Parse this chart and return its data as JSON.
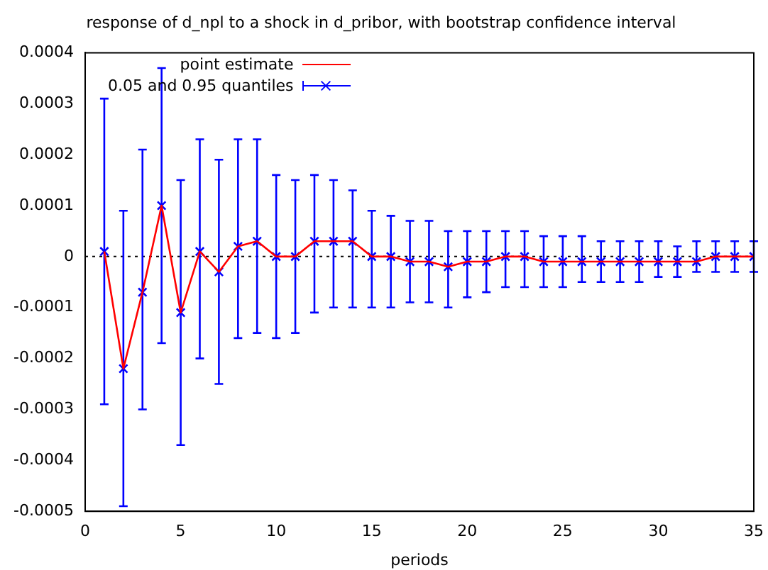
{
  "chart_data": {
    "type": "line",
    "title": "response of d_npl to a shock in d_pribor, with bootstrap confidence interval",
    "xlabel": "periods",
    "x": [
      1,
      2,
      3,
      4,
      5,
      6,
      7,
      8,
      9,
      10,
      11,
      12,
      13,
      14,
      15,
      16,
      17,
      18,
      19,
      20,
      21,
      22,
      23,
      24,
      25,
      26,
      27,
      28,
      29,
      30,
      31,
      32,
      33,
      34,
      35
    ],
    "xlim": [
      0,
      35
    ],
    "xticks": [
      0,
      5,
      10,
      15,
      20,
      25,
      30,
      35
    ],
    "ylim": [
      -0.0005,
      0.0004
    ],
    "yticks": [
      -0.0005,
      -0.0004,
      -0.0003,
      -0.0002,
      -0.0001,
      0,
      0.0001,
      0.0002,
      0.0003,
      0.0004
    ],
    "legend": "top left",
    "grid": false,
    "ref_lines": [
      {
        "axis": "y",
        "value": 0,
        "color": "#000000",
        "line_style": "dotted"
      }
    ],
    "series": [
      {
        "name": "point estimate",
        "type": "line",
        "color": "#ff0000",
        "marker": "none",
        "values": [
          1e-05,
          -0.00022,
          -7e-05,
          0.0001,
          -0.00011,
          1e-05,
          -3e-05,
          2e-05,
          3e-05,
          0,
          0,
          3e-05,
          3e-05,
          3e-05,
          0,
          0,
          -1e-05,
          -1e-05,
          -2e-05,
          -1e-05,
          -1e-05,
          0,
          0,
          -1e-05,
          -1e-05,
          -1e-05,
          -1e-05,
          -1e-05,
          -1e-05,
          -1e-05,
          -1e-05,
          -1e-05,
          0,
          0,
          0
        ]
      },
      {
        "name": "0.05 and 0.95 quantiles",
        "type": "scatter",
        "color": "#0000ff",
        "marker": "cross",
        "values": [
          1e-05,
          -0.00022,
          -7e-05,
          0.0001,
          -0.00011,
          1e-05,
          -3e-05,
          2e-05,
          3e-05,
          0,
          0,
          3e-05,
          3e-05,
          3e-05,
          0,
          0,
          -1e-05,
          -1e-05,
          -2e-05,
          -1e-05,
          -1e-05,
          0,
          0,
          -1e-05,
          -1e-05,
          -1e-05,
          -1e-05,
          -1e-05,
          -1e-05,
          -1e-05,
          -1e-05,
          -1e-05,
          0,
          0,
          0
        ],
        "errors": [
          [
            -0.00029,
            0.00031
          ],
          [
            -0.00049,
            9e-05
          ],
          [
            -0.0003,
            0.00021
          ],
          [
            -0.00017,
            0.00037
          ],
          [
            -0.00037,
            0.00015
          ],
          [
            -0.0002,
            0.00023
          ],
          [
            -0.00025,
            0.00019
          ],
          [
            -0.00016,
            0.00023
          ],
          [
            -0.00015,
            0.00023
          ],
          [
            -0.00016,
            0.00016
          ],
          [
            -0.00015,
            0.00015
          ],
          [
            -0.00011,
            0.00016
          ],
          [
            -0.0001,
            0.00015
          ],
          [
            -0.0001,
            0.00013
          ],
          [
            -0.0001,
            9e-05
          ],
          [
            -0.0001,
            8e-05
          ],
          [
            -9e-05,
            7e-05
          ],
          [
            -9e-05,
            7e-05
          ],
          [
            -0.0001,
            5e-05
          ],
          [
            -8e-05,
            5e-05
          ],
          [
            -7e-05,
            5e-05
          ],
          [
            -6e-05,
            5e-05
          ],
          [
            -6e-05,
            5e-05
          ],
          [
            -6e-05,
            4e-05
          ],
          [
            -6e-05,
            4e-05
          ],
          [
            -5e-05,
            4e-05
          ],
          [
            -5e-05,
            3e-05
          ],
          [
            -5e-05,
            3e-05
          ],
          [
            -5e-05,
            3e-05
          ],
          [
            -4e-05,
            3e-05
          ],
          [
            -4e-05,
            2e-05
          ],
          [
            -3e-05,
            3e-05
          ],
          [
            -3e-05,
            3e-05
          ],
          [
            -3e-05,
            3e-05
          ],
          [
            -3e-05,
            3e-05
          ]
        ]
      }
    ]
  }
}
